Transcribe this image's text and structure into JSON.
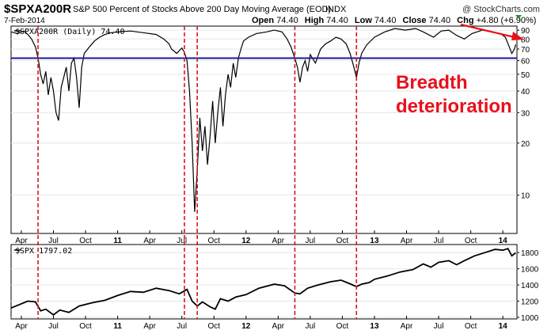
{
  "header": {
    "symbol": "$SPXA200R",
    "description": "S&P 500 Percent of Stocks Above 200 Day Moving Average (EOD)",
    "exchange": "INDX",
    "date": "7-Feb-2014",
    "open_label": "Open",
    "open": "74.40",
    "high_label": "High",
    "high": "74.40",
    "low_label": "Low",
    "low": "74.40",
    "close_label": "Close",
    "close": "74.40",
    "chg_label": "Chg",
    "chg": "+4.80 (+6.90%)",
    "brand": "@ StockCharts.com"
  },
  "annotation": {
    "line1": "Breadth",
    "line2": "deterioration"
  },
  "colors": {
    "series": "#000000",
    "threshold": "#1a1a9c",
    "markers": "#d8141c",
    "annotation": "#e8101c",
    "grid": "#e6e6e6"
  },
  "chart_data": [
    {
      "type": "line",
      "legend": "$SPXA200R (Daily) 74.40",
      "y_scale": "log",
      "ylim": [
        6,
        95
      ],
      "y_ticks": [
        10,
        20,
        30,
        40,
        50,
        60,
        70,
        80,
        90
      ],
      "x_ticks": [
        "Apr",
        "Jul",
        "Oct",
        "11",
        "Apr",
        "Jul",
        "Oct",
        "12",
        "Apr",
        "Jul",
        "Oct",
        "13",
        "Apr",
        "Jul",
        "Oct",
        "14"
      ],
      "threshold": 62,
      "series": [
        {
          "values": [
            [
              2010.17,
              88
            ],
            [
              2010.22,
              86
            ],
            [
              2010.27,
              89
            ],
            [
              2010.3,
              85
            ],
            [
              2010.33,
              80
            ],
            [
              2010.36,
              72
            ],
            [
              2010.38,
              62
            ],
            [
              2010.4,
              50
            ],
            [
              2010.42,
              44
            ],
            [
              2010.44,
              52
            ],
            [
              2010.46,
              38
            ],
            [
              2010.48,
              48
            ],
            [
              2010.5,
              40
            ],
            [
              2010.52,
              30
            ],
            [
              2010.54,
              27
            ],
            [
              2010.56,
              42
            ],
            [
              2010.58,
              48
            ],
            [
              2010.6,
              55
            ],
            [
              2010.62,
              40
            ],
            [
              2010.64,
              58
            ],
            [
              2010.66,
              62
            ],
            [
              2010.68,
              48
            ],
            [
              2010.7,
              32
            ],
            [
              2010.72,
              55
            ],
            [
              2010.74,
              66
            ],
            [
              2010.78,
              72
            ],
            [
              2010.82,
              78
            ],
            [
              2010.86,
              82
            ],
            [
              2010.9,
              85
            ],
            [
              2010.95,
              87
            ],
            [
              2011.0,
              88
            ],
            [
              2011.1,
              89
            ],
            [
              2011.2,
              87
            ],
            [
              2011.3,
              85
            ],
            [
              2011.36,
              80
            ],
            [
              2011.4,
              75
            ],
            [
              2011.42,
              70
            ],
            [
              2011.46,
              66
            ],
            [
              2011.5,
              71
            ],
            [
              2011.52,
              67
            ],
            [
              2011.54,
              60
            ],
            [
              2011.56,
              40
            ],
            [
              2011.58,
              20
            ],
            [
              2011.6,
              8
            ],
            [
              2011.62,
              14
            ],
            [
              2011.64,
              28
            ],
            [
              2011.66,
              18
            ],
            [
              2011.68,
              25
            ],
            [
              2011.7,
              15
            ],
            [
              2011.72,
              22
            ],
            [
              2011.74,
              35
            ],
            [
              2011.76,
              20
            ],
            [
              2011.78,
              30
            ],
            [
              2011.8,
              42
            ],
            [
              2011.82,
              25
            ],
            [
              2011.84,
              38
            ],
            [
              2011.86,
              50
            ],
            [
              2011.88,
              42
            ],
            [
              2011.9,
              58
            ],
            [
              2011.92,
              48
            ],
            [
              2011.94,
              62
            ],
            [
              2011.96,
              70
            ],
            [
              2011.98,
              78
            ],
            [
              2012.02,
              82
            ],
            [
              2012.08,
              86
            ],
            [
              2012.16,
              88
            ],
            [
              2012.22,
              90
            ],
            [
              2012.28,
              88
            ],
            [
              2012.32,
              80
            ],
            [
              2012.35,
              72
            ],
            [
              2012.38,
              62
            ],
            [
              2012.4,
              55
            ],
            [
              2012.42,
              45
            ],
            [
              2012.44,
              55
            ],
            [
              2012.46,
              60
            ],
            [
              2012.48,
              52
            ],
            [
              2012.5,
              65
            ],
            [
              2012.54,
              58
            ],
            [
              2012.58,
              70
            ],
            [
              2012.62,
              75
            ],
            [
              2012.66,
              78
            ],
            [
              2012.7,
              82
            ],
            [
              2012.74,
              80
            ],
            [
              2012.78,
              75
            ],
            [
              2012.81,
              66
            ],
            [
              2012.84,
              55
            ],
            [
              2012.86,
              48
            ],
            [
              2012.88,
              58
            ],
            [
              2012.9,
              66
            ],
            [
              2012.94,
              74
            ],
            [
              2013.0,
              82
            ],
            [
              2013.08,
              88
            ],
            [
              2013.16,
              92
            ],
            [
              2013.24,
              90
            ],
            [
              2013.32,
              92
            ],
            [
              2013.38,
              88
            ],
            [
              2013.46,
              82
            ],
            [
              2013.52,
              89
            ],
            [
              2013.58,
              90
            ],
            [
              2013.64,
              84
            ],
            [
              2013.7,
              80
            ],
            [
              2013.76,
              86
            ],
            [
              2013.84,
              90
            ],
            [
              2013.92,
              88
            ],
            [
              2013.98,
              86
            ],
            [
              2014.02,
              82
            ],
            [
              2014.05,
              72
            ],
            [
              2014.07,
              66
            ],
            [
              2014.09,
              70
            ],
            [
              2014.1,
              74.4
            ]
          ]
        }
      ]
    },
    {
      "type": "line",
      "legend": "$SPX 1797.02",
      "ylim": [
        980,
        1900
      ],
      "y_ticks": [
        1000,
        1200,
        1400,
        1600,
        1800
      ],
      "x_ticks": [
        "Apr",
        "Jul",
        "Oct",
        "11",
        "Apr",
        "Jul",
        "Oct",
        "12",
        "Apr",
        "Jul",
        "Oct",
        "13",
        "Apr",
        "Jul",
        "Oct",
        "14"
      ],
      "series": [
        {
          "values": [
            [
              2010.17,
              1115
            ],
            [
              2010.3,
              1200
            ],
            [
              2010.36,
              1190
            ],
            [
              2010.4,
              1080
            ],
            [
              2010.44,
              1100
            ],
            [
              2010.5,
              1030
            ],
            [
              2010.55,
              1090
            ],
            [
              2010.62,
              1060
            ],
            [
              2010.7,
              1140
            ],
            [
              2010.8,
              1180
            ],
            [
              2010.9,
              1210
            ],
            [
              2011.0,
              1270
            ],
            [
              2011.1,
              1320
            ],
            [
              2011.2,
              1310
            ],
            [
              2011.3,
              1360
            ],
            [
              2011.4,
              1330
            ],
            [
              2011.48,
              1290
            ],
            [
              2011.54,
              1345
            ],
            [
              2011.58,
              1200
            ],
            [
              2011.62,
              1140
            ],
            [
              2011.66,
              1190
            ],
            [
              2011.72,
              1130
            ],
            [
              2011.76,
              1100
            ],
            [
              2011.8,
              1230
            ],
            [
              2011.86,
              1200
            ],
            [
              2011.92,
              1250
            ],
            [
              2012.0,
              1280
            ],
            [
              2012.1,
              1360
            ],
            [
              2012.22,
              1410
            ],
            [
              2012.3,
              1390
            ],
            [
              2012.38,
              1300
            ],
            [
              2012.42,
              1290
            ],
            [
              2012.48,
              1360
            ],
            [
              2012.56,
              1400
            ],
            [
              2012.66,
              1440
            ],
            [
              2012.74,
              1460
            ],
            [
              2012.8,
              1420
            ],
            [
              2012.86,
              1380
            ],
            [
              2012.9,
              1410
            ],
            [
              2012.96,
              1430
            ],
            [
              2013.0,
              1470
            ],
            [
              2013.1,
              1510
            ],
            [
              2013.2,
              1560
            ],
            [
              2013.3,
              1590
            ],
            [
              2013.38,
              1660
            ],
            [
              2013.44,
              1620
            ],
            [
              2013.5,
              1680
            ],
            [
              2013.58,
              1700
            ],
            [
              2013.64,
              1650
            ],
            [
              2013.7,
              1700
            ],
            [
              2013.78,
              1760
            ],
            [
              2013.86,
              1800
            ],
            [
              2013.94,
              1840
            ],
            [
              2014.0,
              1830
            ],
            [
              2014.04,
              1850
            ],
            [
              2014.07,
              1760
            ],
            [
              2014.1,
              1797
            ]
          ]
        }
      ]
    }
  ],
  "markers_x": [
    2010.38,
    2011.52,
    2011.62,
    2012.38,
    2012.86
  ]
}
